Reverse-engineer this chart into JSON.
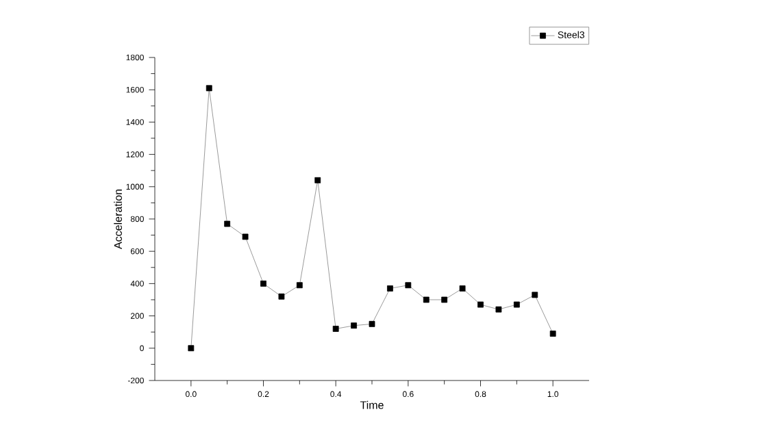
{
  "chart_data": {
    "type": "line",
    "xlabel": "Time",
    "ylabel": "Acceleration",
    "x": [
      0.0,
      0.05,
      0.1,
      0.15,
      0.2,
      0.25,
      0.3,
      0.35,
      0.4,
      0.45,
      0.5,
      0.55,
      0.6,
      0.65,
      0.7,
      0.75,
      0.8,
      0.85,
      0.9,
      0.95,
      1.0
    ],
    "series": [
      {
        "name": "Steel3",
        "color": "#000000",
        "values": [
          0,
          1610,
          770,
          690,
          400,
          320,
          390,
          1040,
          120,
          140,
          150,
          370,
          390,
          300,
          300,
          370,
          270,
          240,
          270,
          330,
          90
        ]
      }
    ],
    "xlim": [
      -0.1,
      1.1
    ],
    "ylim": [
      -200,
      1800
    ],
    "xticks": [
      {
        "value": 0,
        "label": "0.0"
      },
      0.2,
      0.4,
      0.6,
      0.8,
      {
        "value": 1,
        "label": "1.0"
      }
    ],
    "yticks": [
      -200,
      0,
      200,
      400,
      600,
      800,
      1000,
      1200,
      1400,
      1600,
      1800
    ],
    "marker": "square",
    "line_style": "solid",
    "legend": "top right",
    "grid": false
  }
}
